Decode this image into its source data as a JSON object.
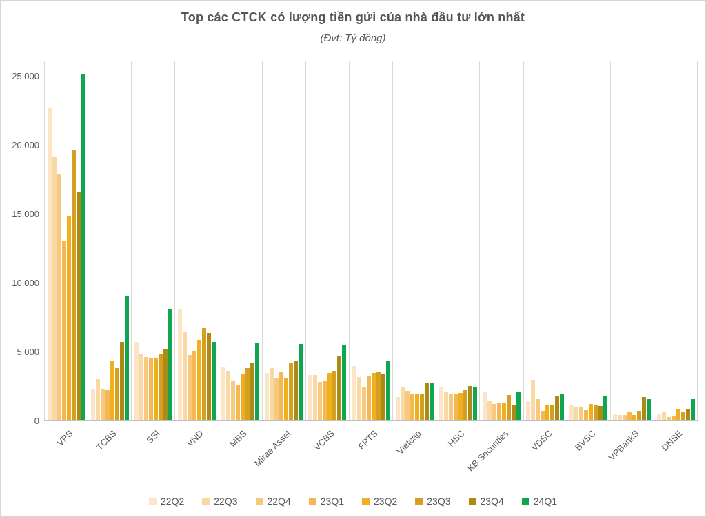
{
  "chart_data": {
    "type": "bar",
    "title": "Top các CTCK có lượng tiền gửi của nhà đầu tư lớn nhất",
    "subtitle": "(Đvt: Tỷ đồng)",
    "unit_note": "Tỷ đồng",
    "categories": [
      "VPS",
      "TCBS",
      "SSI",
      "VND",
      "MBS",
      "Mirae Asset",
      "VCBS",
      "FPTS",
      "Vietcap",
      "HSC",
      "KB Securities",
      "VDSC",
      "BVSC",
      "VPBankS",
      "DNSE"
    ],
    "series": [
      {
        "name": "22Q2",
        "color": "#FBE5C6",
        "values": [
          22700,
          2300,
          5700,
          8100,
          3850,
          3450,
          3300,
          3950,
          1700,
          2450,
          2050,
          1450,
          1100,
          500,
          450
        ]
      },
      {
        "name": "22Q3",
        "color": "#F9D8A4",
        "values": [
          19100,
          3000,
          4800,
          6450,
          3600,
          3800,
          3300,
          3150,
          2400,
          2100,
          1450,
          2950,
          1000,
          400,
          600
        ]
      },
      {
        "name": "22Q4",
        "color": "#F7C97E",
        "values": [
          17900,
          2300,
          4600,
          4750,
          2900,
          3050,
          2800,
          2450,
          2150,
          1900,
          1200,
          1550,
          950,
          380,
          250
        ]
      },
      {
        "name": "23Q1",
        "color": "#F5B754",
        "values": [
          13000,
          2200,
          4500,
          5050,
          2600,
          3550,
          2850,
          3200,
          1900,
          1900,
          1300,
          700,
          750,
          600,
          350
        ]
      },
      {
        "name": "23Q2",
        "color": "#F0B01E",
        "values": [
          14800,
          4350,
          4500,
          5850,
          3350,
          3050,
          3450,
          3450,
          1950,
          2000,
          1300,
          1150,
          1200,
          400,
          870
        ]
      },
      {
        "name": "23Q3",
        "color": "#D5A021",
        "values": [
          19600,
          3800,
          4800,
          6700,
          3800,
          4200,
          3600,
          3500,
          1950,
          2200,
          1850,
          1100,
          1100,
          700,
          600
        ]
      },
      {
        "name": "23Q4",
        "color": "#AD8A13",
        "values": [
          16600,
          5700,
          5200,
          6350,
          4200,
          4350,
          4700,
          3350,
          2750,
          2500,
          1150,
          1800,
          1050,
          1700,
          830
        ]
      },
      {
        "name": "24Q1",
        "color": "#0EA750",
        "values": [
          25100,
          9000,
          8100,
          5700,
          5600,
          5550,
          5500,
          4350,
          2700,
          2400,
          2050,
          1950,
          1750,
          1550,
          1550
        ]
      }
    ],
    "xlabel": "",
    "ylabel": "",
    "ylim": [
      0,
      26100
    ],
    "yticks": [
      {
        "value": 0,
        "label": "0"
      },
      {
        "value": 5000,
        "label": "5.000"
      },
      {
        "value": 10000,
        "label": "10.000"
      },
      {
        "value": 15000,
        "label": "15.000"
      },
      {
        "value": 20000,
        "label": "20.000"
      },
      {
        "value": 25000,
        "label": "25.000"
      }
    ],
    "grid": "vertical-category-separators",
    "legend_position": "bottom"
  },
  "style_colors": {
    "text": "#595959",
    "gridline": "#D9D9D9",
    "axis_line": "#BFBFBF",
    "background": "#FFFFFF"
  }
}
